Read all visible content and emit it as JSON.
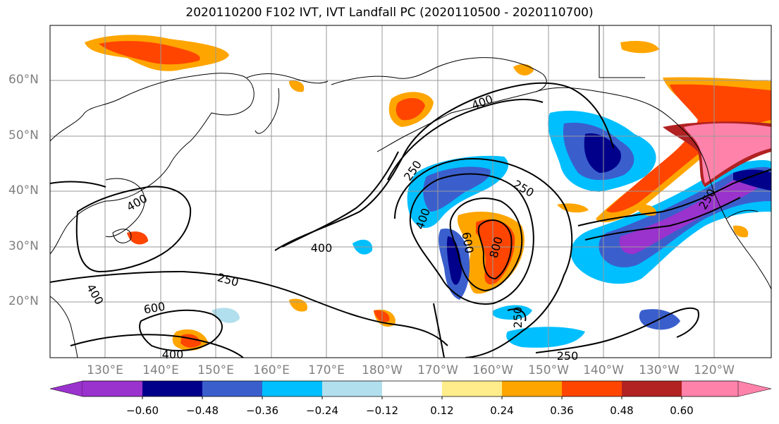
{
  "title": "2020110200 F102 IVT, IVT Landfall PC (2020110500 - 2020110700)",
  "lat_labels": [
    "60°N",
    "50°N",
    "40°N",
    "30°N",
    "20°N"
  ],
  "lon_labels": [
    "130°E",
    "140°E",
    "150°E",
    "160°E",
    "170°E",
    "180°W",
    "170°W",
    "160°W",
    "150°W",
    "140°W",
    "130°W",
    "120°W"
  ],
  "contour_labels": [
    "400",
    "250",
    "250",
    "400",
    "400",
    "600",
    "800",
    "250",
    "400",
    "250",
    "600",
    "400",
    "250",
    "250",
    "400"
  ],
  "colorbar": {
    "ticks": [
      "−0.60",
      "−0.48",
      "−0.36",
      "−0.24",
      "−0.12",
      "0.12",
      "0.24",
      "0.36",
      "0.48",
      "0.60"
    ],
    "colors": [
      "#9a32cd",
      "#00008b",
      "#3a5fcd",
      "#00bfff",
      "#b2dfee",
      "#ffffff",
      "#ffec8b",
      "#ffa500",
      "#ff4500",
      "#b22222",
      "#ff82ab"
    ]
  }
}
